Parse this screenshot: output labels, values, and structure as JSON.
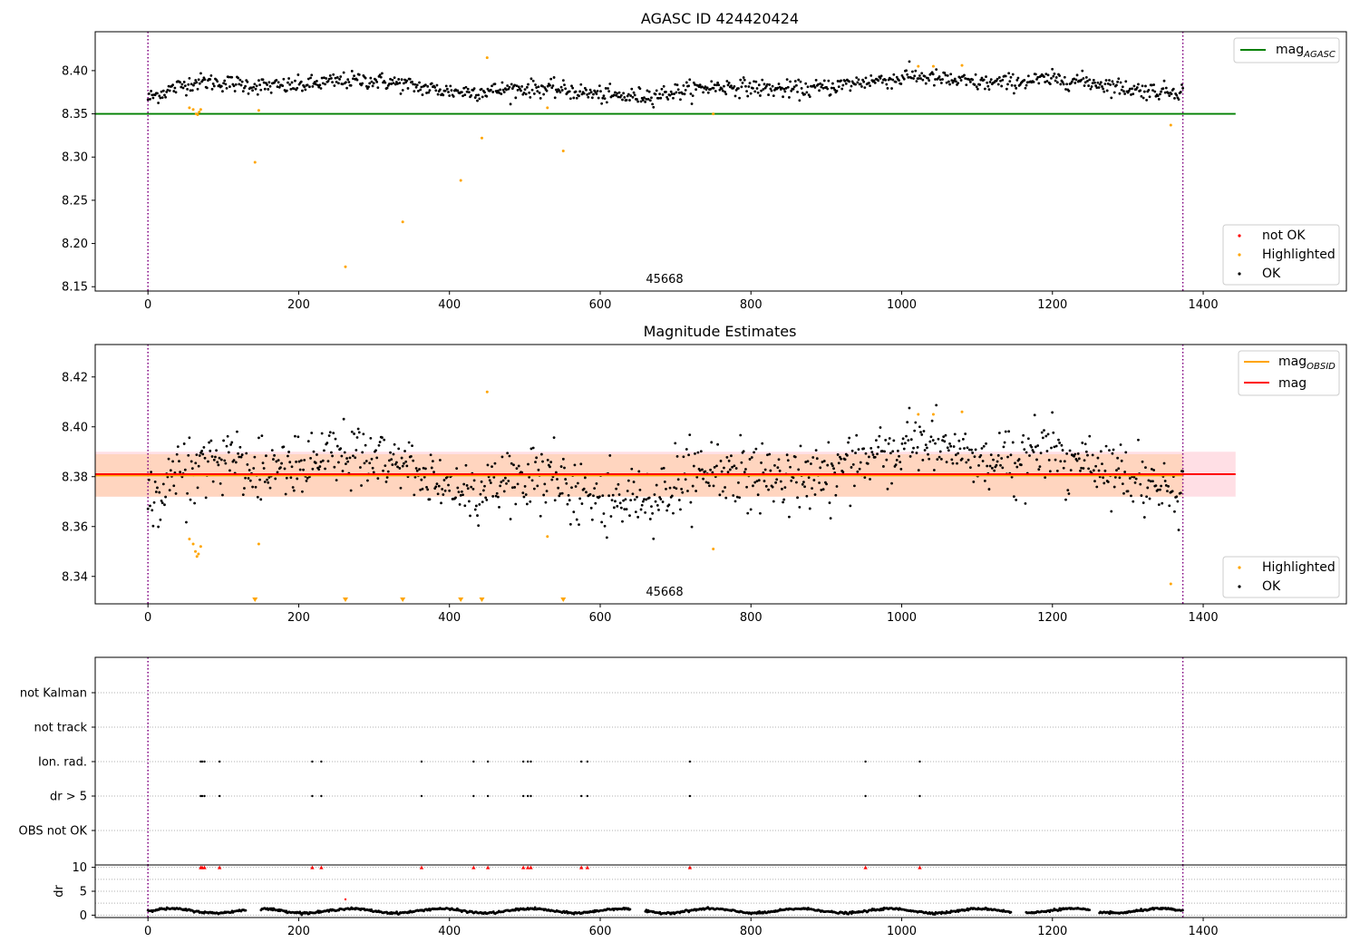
{
  "chart_data": [
    {
      "type": "scatter",
      "title": "AGASC ID 424420424",
      "annotation": "45668",
      "xlim": [
        -70,
        1590
      ],
      "ylim": [
        8.145,
        8.445
      ],
      "xticks": [
        0,
        200,
        400,
        600,
        800,
        1000,
        1200,
        1400
      ],
      "yticks": [
        8.15,
        8.2,
        8.25,
        8.3,
        8.35,
        8.4
      ],
      "grid": false,
      "vlines": [
        0,
        1373
      ],
      "hlines": [
        {
          "name": "mag_AGASC",
          "y": 8.35,
          "xmax": 1443,
          "color": "#008000"
        }
      ],
      "legend_lines": [
        {
          "main": "mag",
          "sub": "AGASC",
          "color": "#008000"
        }
      ],
      "legend_points": [
        {
          "label": "not OK",
          "color": "#ff0000"
        },
        {
          "label": "Highlighted",
          "color": "#ffa500"
        },
        {
          "label": "OK",
          "color": "#000000"
        }
      ],
      "ok_points": {
        "x_range": [
          0,
          1373
        ],
        "count": 1000,
        "baseline": 8.38,
        "spread": 0.009
      },
      "highlighted_points": [
        [
          55,
          8.357
        ],
        [
          60,
          8.355
        ],
        [
          64,
          8.35
        ],
        [
          66,
          8.349
        ],
        [
          68,
          8.352
        ],
        [
          70,
          8.355
        ],
        [
          142,
          8.294
        ],
        [
          147,
          8.354
        ],
        [
          262,
          8.173
        ],
        [
          338,
          8.225
        ],
        [
          415,
          8.273
        ],
        [
          443,
          8.322
        ],
        [
          450,
          8.415
        ],
        [
          530,
          8.357
        ],
        [
          551,
          8.307
        ],
        [
          750,
          8.35
        ],
        [
          1022,
          8.405
        ],
        [
          1042,
          8.405
        ],
        [
          1080,
          8.406
        ],
        [
          1357,
          8.337
        ]
      ]
    },
    {
      "type": "scatter",
      "title": "Magnitude Estimates",
      "annotation": "45668",
      "xlim": [
        -70,
        1590
      ],
      "ylim": [
        8.329,
        8.433
      ],
      "xticks": [
        0,
        200,
        400,
        600,
        800,
        1000,
        1200,
        1400
      ],
      "yticks": [
        8.34,
        8.36,
        8.38,
        8.4,
        8.42
      ],
      "grid": false,
      "vlines": [
        0,
        1373
      ],
      "hlines": [
        {
          "name": "mag_OBSID",
          "y": 8.3805,
          "xmax": 1373,
          "color": "#ffa500"
        },
        {
          "name": "mag",
          "y": 8.381,
          "xmax": 1443,
          "color": "#ff0000"
        }
      ],
      "bands": [
        {
          "y": [
            8.372,
            8.39
          ],
          "xmax": 1443,
          "color": "#ffc0cb"
        },
        {
          "y": [
            8.372,
            8.389
          ],
          "xmax": 1373,
          "color": "#ffd4b8"
        }
      ],
      "legend_lines": [
        {
          "main": "mag",
          "sub": "OBSID",
          "color": "#ffa500"
        },
        {
          "main": "mag",
          "sub": "",
          "color": "#ff0000"
        }
      ],
      "legend_points": [
        {
          "label": "Highlighted",
          "color": "#ffa500"
        },
        {
          "label": "OK",
          "color": "#000000"
        }
      ],
      "ok_points": {
        "x_range": [
          0,
          1373
        ],
        "count": 1000,
        "baseline": 8.38,
        "spread": 0.009
      },
      "highlighted_points": [
        [
          55,
          8.355
        ],
        [
          60,
          8.353
        ],
        [
          63,
          8.35
        ],
        [
          65,
          8.348
        ],
        [
          67,
          8.349
        ],
        [
          70,
          8.352
        ],
        [
          147,
          8.353
        ],
        [
          450,
          8.414
        ],
        [
          530,
          8.356
        ],
        [
          750,
          8.351
        ],
        [
          1022,
          8.405
        ],
        [
          1042,
          8.405
        ],
        [
          1080,
          8.406
        ],
        [
          1357,
          8.337
        ]
      ],
      "offscale_markers_x": [
        142,
        262,
        338,
        415,
        443,
        551
      ]
    },
    {
      "type": "scatter",
      "title": "",
      "xlim": [
        -70,
        1590
      ],
      "vlines": [
        0,
        1373
      ],
      "categories": [
        "not Kalman",
        "not track",
        "Ion. rad.",
        "dr > 5",
        "OBS not OK"
      ],
      "flag_x": {
        "Ion. rad.": [
          70,
          72,
          75,
          95,
          218,
          230,
          363,
          432,
          451,
          498,
          504,
          508,
          575,
          583,
          719,
          952,
          1024
        ],
        "dr > 5": [
          70,
          72,
          75,
          95,
          218,
          230,
          363,
          432,
          451,
          498,
          504,
          508,
          575,
          583,
          719,
          952,
          1024
        ]
      },
      "grid": true
    },
    {
      "type": "scatter",
      "title": "",
      "xlabel": "",
      "ylabel": "dr",
      "xlim": [
        -70,
        1590
      ],
      "ylim": [
        -0.5,
        10.5
      ],
      "xticks": [
        0,
        200,
        400,
        600,
        800,
        1000,
        1200,
        1400
      ],
      "yticks": [
        0,
        5,
        10
      ],
      "vlines": [
        0,
        1373
      ],
      "grid": true,
      "red_markers_x": [
        70,
        72,
        75,
        95,
        218,
        230,
        363,
        432,
        451,
        498,
        504,
        508,
        575,
        583,
        719,
        952,
        1024
      ],
      "red_markers_y": 10,
      "red_points": [
        [
          262,
          3.3
        ]
      ],
      "dr_series": {
        "x_range": [
          0,
          1373
        ],
        "baseline": 0.9,
        "spread": 0.35
      },
      "gaps": [
        [
          130,
          150
        ],
        [
          640,
          660
        ],
        [
          1145,
          1165
        ],
        [
          1250,
          1262
        ]
      ]
    }
  ]
}
